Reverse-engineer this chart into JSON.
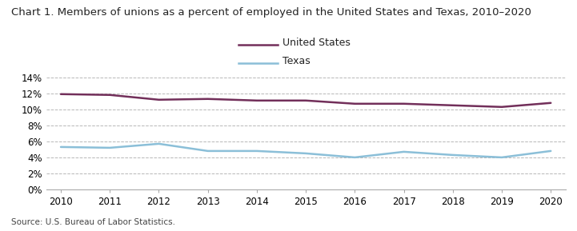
{
  "title": "Chart 1. Members of unions as a percent of employed in the United States and Texas, 2010–2020",
  "years": [
    2010,
    2011,
    2012,
    2013,
    2014,
    2015,
    2016,
    2017,
    2018,
    2019,
    2020
  ],
  "us_values": [
    11.9,
    11.8,
    11.2,
    11.3,
    11.1,
    11.1,
    10.7,
    10.7,
    10.5,
    10.3,
    10.8
  ],
  "tx_values": [
    5.3,
    5.2,
    5.7,
    4.8,
    4.8,
    4.5,
    4.0,
    4.7,
    4.3,
    4.0,
    4.8
  ],
  "us_color": "#722F5A",
  "tx_color": "#8BBFD8",
  "us_label": "United States",
  "tx_label": "Texas",
  "ylim": [
    0,
    0.15
  ],
  "yticks": [
    0,
    0.02,
    0.04,
    0.06,
    0.08,
    0.1,
    0.12,
    0.14
  ],
  "ytick_labels": [
    "0%",
    "2%",
    "4%",
    "6%",
    "8%",
    "10%",
    "12%",
    "14%"
  ],
  "source": "Source: U.S. Bureau of Labor Statistics.",
  "background_color": "#ffffff",
  "grid_color": "#b0b0b0",
  "line_width": 1.8,
  "title_fontsize": 9.5,
  "legend_fontsize": 9,
  "tick_fontsize": 8.5,
  "source_fontsize": 7.5
}
